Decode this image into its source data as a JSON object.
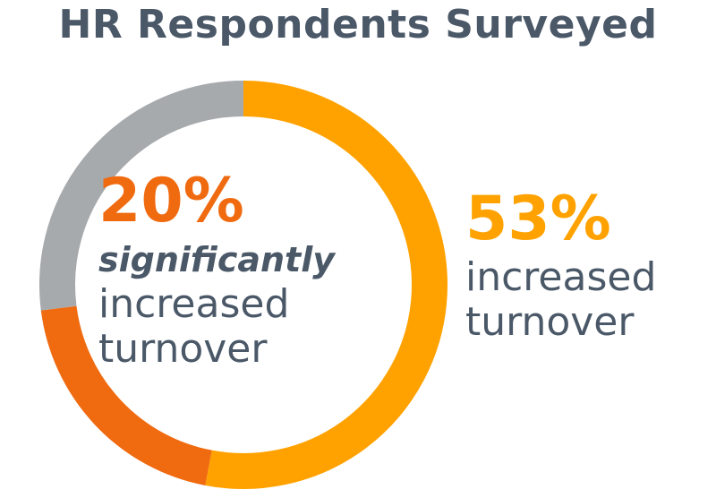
{
  "title": "HR Respondents Surveyed",
  "colors": {
    "title_text": "#4a5868",
    "remainder": "#a6aaad",
    "increased": "#ffa200",
    "significantly_increased": "#f06a10"
  },
  "center_label": {
    "percent": "20%",
    "qualifier": "significantly",
    "line1": "increased",
    "line2": "turnover"
  },
  "right_label": {
    "percent": "53%",
    "line1": "increased",
    "line2": "turnover"
  },
  "chart_data": {
    "type": "pie",
    "style": "donut",
    "labels": [
      "increased turnover",
      "significantly increased turnover",
      ""
    ],
    "values": [
      53,
      20,
      27
    ],
    "colors": [
      "#ffa200",
      "#f06a10",
      "#a6aaad"
    ],
    "start_angle_deg": 0,
    "direction": "clockwise",
    "legend": false
  }
}
